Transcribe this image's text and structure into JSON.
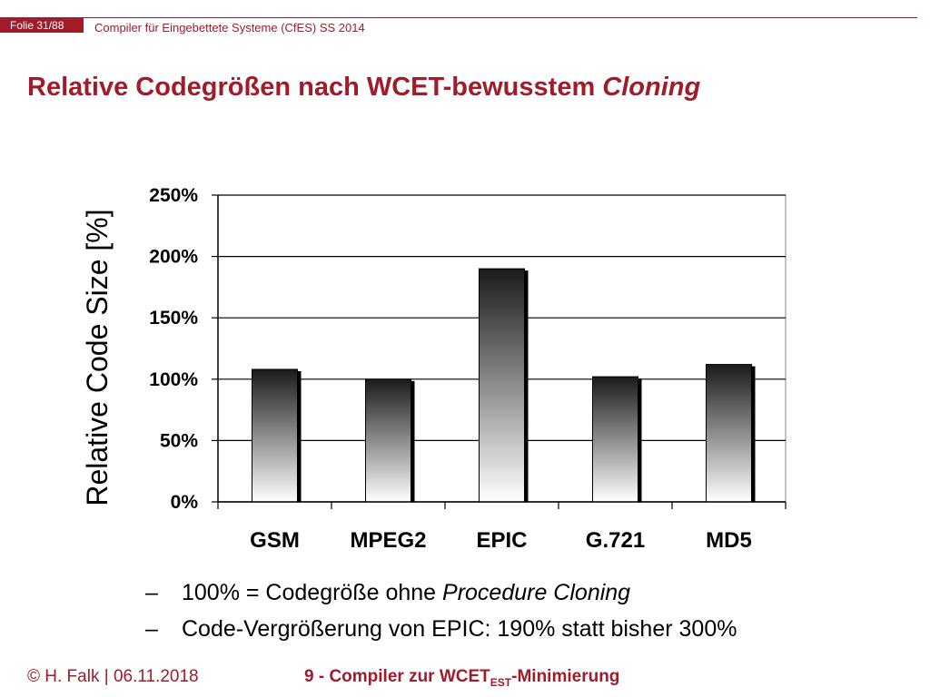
{
  "header": {
    "slide_counter": "Folie 31/88",
    "course": "Compiler für Eingebettete Systeme (CfES) SS 2014"
  },
  "title": {
    "main": "Relative Codegrößen nach WCET-bewusstem ",
    "emph": "Cloning"
  },
  "bullets": [
    {
      "dash": "–",
      "pre": "100% = Codegröße ohne ",
      "emph": "Procedure Cloning",
      "post": ""
    },
    {
      "dash": "–",
      "pre": "Code-Vergrößerung von EPIC: 190% statt bisher 300%",
      "emph": "",
      "post": ""
    }
  ],
  "footer": {
    "left": "© H. Falk | 06.11.2018",
    "center_pre": "9 - Compiler zur WCET",
    "center_sub": "EST",
    "center_post": "-Minimierung"
  },
  "colors": {
    "accent": "#a01c2a",
    "bar_top": "#1a1a1a",
    "bar_bottom": "#ffffff",
    "bar_shadow": "#000000",
    "grid": "#000000"
  },
  "chart_data": {
    "type": "bar",
    "categories": [
      "GSM",
      "MPEG2",
      "EPIC",
      "G.721",
      "MD5"
    ],
    "values": [
      108,
      100,
      190,
      102,
      112
    ],
    "ylabel": "Relative Code Size [%]",
    "ylim": [
      0,
      250
    ],
    "yticks": [
      0,
      50,
      100,
      150,
      200,
      250
    ],
    "ytick_labels": [
      "0%",
      "50%",
      "100%",
      "150%",
      "200%",
      "250%"
    ],
    "grid": true,
    "legend": "none"
  }
}
